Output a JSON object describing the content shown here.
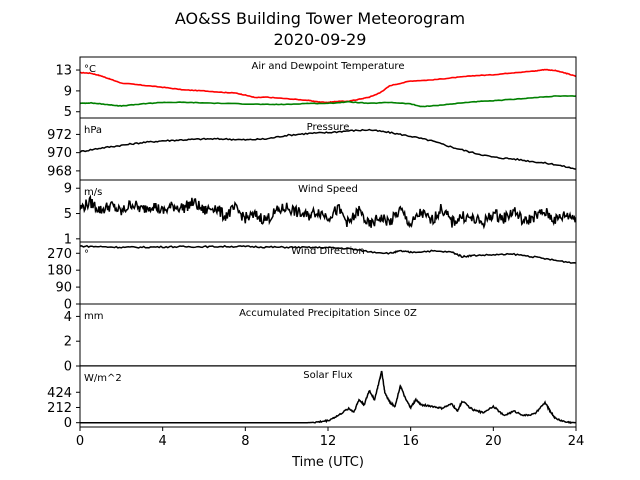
{
  "title_line1": "AO&SS Building Tower Meteorogram",
  "title_line2": "2020-09-29",
  "chart_data": {
    "type": "line",
    "xlabel": "Time (UTC)",
    "xlim": [
      0,
      24
    ],
    "x_ticks": [
      0,
      4,
      8,
      12,
      16,
      20,
      24
    ],
    "panels": [
      {
        "id": "temp",
        "title": "Air and Dewpoint Temperature",
        "unit": "°C",
        "ylim": [
          3.8,
          15.5
        ],
        "y_ticks": [
          5,
          9,
          13
        ],
        "series": [
          {
            "color": "#ff0000",
            "x": [
              0,
              0.5,
              1,
              1.5,
              2,
              3,
              4,
              5,
              6,
              7,
              7.5,
              8,
              8.5,
              9,
              10,
              11,
              11.5,
              12,
              12.5,
              13,
              13.5,
              14,
              14.5,
              15,
              16,
              17,
              18,
              19,
              20,
              21,
              22,
              22.5,
              23,
              23.5,
              24
            ],
            "y": [
              12.5,
              12.4,
              11.9,
              11.2,
              10.5,
              10.1,
              9.7,
              9.2,
              9.0,
              8.7,
              8.6,
              8.2,
              7.7,
              7.8,
              7.5,
              7.2,
              6.9,
              6.8,
              7.0,
              7.0,
              7.4,
              7.8,
              8.6,
              10.0,
              10.9,
              11.1,
              11.5,
              11.9,
              12.1,
              12.5,
              12.8,
              13.1,
              12.9,
              12.4,
              11.8
            ]
          },
          {
            "color": "#008000",
            "x": [
              0,
              0.5,
              1,
              1.5,
              2,
              3,
              4,
              5,
              6,
              8,
              9,
              10,
              11,
              12,
              13,
              14,
              15,
              16,
              16.5,
              17,
              18,
              19,
              20,
              21,
              22,
              23,
              24
            ],
            "y": [
              6.6,
              6.7,
              6.5,
              6.3,
              6.1,
              6.5,
              6.8,
              6.8,
              6.7,
              6.5,
              6.4,
              6.4,
              6.6,
              6.6,
              6.9,
              6.6,
              6.8,
              6.5,
              6.0,
              6.1,
              6.5,
              6.9,
              7.1,
              7.4,
              7.7,
              8.0,
              8.0
            ]
          }
        ]
      },
      {
        "id": "pressure",
        "title": "Pressure",
        "unit": "hPa",
        "ylim": [
          967.0,
          973.8
        ],
        "y_ticks": [
          968,
          970,
          972
        ],
        "series": [
          {
            "color": "#000000",
            "x": [
              0,
              1,
              2,
              3,
              4,
              5,
              6,
              7,
              8,
              9,
              10,
              11,
              12,
              13,
              14,
              15,
              16,
              17,
              18,
              19,
              20,
              21,
              22,
              23,
              24
            ],
            "y": [
              970.1,
              970.5,
              970.8,
              971.1,
              971.3,
              971.4,
              971.5,
              971.5,
              971.4,
              971.5,
              971.9,
              972.1,
              972.2,
              972.4,
              972.5,
              972.2,
              971.8,
              971.3,
              970.6,
              970.0,
              969.5,
              969.3,
              969.0,
              968.7,
              968.2
            ]
          }
        ]
      },
      {
        "id": "wind-speed",
        "title": "Wind Speed",
        "unit": "m/s",
        "ylim": [
          0.5,
          10.3
        ],
        "y_ticks": [
          1,
          5,
          9
        ],
        "series": [
          {
            "color": "#000000",
            "x": [
              0,
              0.5,
              1,
              1.5,
              2,
              2.5,
              3,
              3.5,
              4,
              4.5,
              5,
              5.5,
              6,
              6.5,
              7,
              7.5,
              8,
              8.5,
              9,
              9.5,
              10,
              10.5,
              11,
              11.5,
              12,
              12.5,
              13,
              13.5,
              14,
              14.5,
              15,
              15.5,
              16,
              16.5,
              17,
              17.5,
              18,
              18.5,
              19,
              19.5,
              20,
              20.5,
              21,
              21.5,
              22,
              22.5,
              23,
              23.5,
              24
            ],
            "y": [
              5.8,
              6.8,
              5.5,
              6.3,
              5.2,
              6.6,
              5.6,
              6.4,
              5.3,
              6.2,
              5.9,
              6.8,
              5.4,
              6.1,
              4.6,
              5.8,
              4.3,
              4.7,
              4.0,
              5.3,
              6.0,
              5.2,
              4.6,
              5.4,
              4.5,
              5.7,
              3.4,
              5.5,
              3.0,
              4.4,
              3.6,
              5.6,
              3.2,
              5.2,
              3.8,
              5.8,
              3.6,
              4.6,
              4.1,
              3.5,
              5.0,
              4.2,
              5.5,
              3.6,
              4.6,
              5.2,
              4.0,
              4.8,
              4.4
            ]
          }
        ]
      },
      {
        "id": "wind-direction",
        "title": "Wind Direction",
        "unit": "°",
        "ylim": [
          0,
          330
        ],
        "y_ticks": [
          0,
          90,
          180,
          270
        ],
        "series": [
          {
            "color": "#000000",
            "x": [
              0,
              1,
              2,
              3,
              4,
              5,
              6,
              7,
              8,
              9,
              10,
              11,
              12,
              13,
              14,
              15,
              15.5,
              16,
              17,
              18,
              18.5,
              19,
              20,
              21,
              22,
              23,
              24
            ],
            "y": [
              308,
              305,
              302,
              302,
              304,
              305,
              305,
              306,
              306,
              303,
              302,
              301,
              300,
              295,
              278,
              270,
              282,
              275,
              282,
              276,
              252,
              258,
              262,
              265,
              250,
              232,
              218
            ]
          }
        ]
      },
      {
        "id": "precip",
        "title": "Accumulated Precipitation Since 0Z",
        "unit": "mm",
        "ylim": [
          0,
          5
        ],
        "y_ticks": [
          0,
          2,
          4
        ],
        "series": [
          {
            "color": "#000000",
            "x": [
              0,
              24
            ],
            "y": [
              0,
              0
            ]
          }
        ]
      },
      {
        "id": "solar",
        "title": "Solar Flux",
        "unit": "W/m^2",
        "ylim": [
          -60,
          790
        ],
        "y_ticks": [
          0,
          212,
          424
        ],
        "series": [
          {
            "color": "#000000",
            "x": [
              0,
              11,
              11.5,
              12,
              12.5,
              13,
              13.25,
              13.5,
              13.75,
              14,
              14.25,
              14.5,
              14.6,
              14.75,
              15,
              15.25,
              15.5,
              15.75,
              16,
              16.25,
              16.5,
              17,
              17.5,
              18,
              18.25,
              18.5,
              19,
              19.5,
              20,
              20.5,
              21,
              21.5,
              22,
              22.5,
              22.75,
              23,
              23.5,
              24
            ],
            "y": [
              0,
              0,
              8,
              30,
              100,
              200,
              150,
              320,
              250,
              450,
              320,
              600,
              720,
              420,
              280,
              230,
              520,
              330,
              210,
              320,
              250,
              230,
              200,
              260,
              160,
              300,
              180,
              140,
              230,
              100,
              160,
              100,
              120,
              280,
              160,
              60,
              10,
              0
            ]
          }
        ]
      }
    ]
  }
}
